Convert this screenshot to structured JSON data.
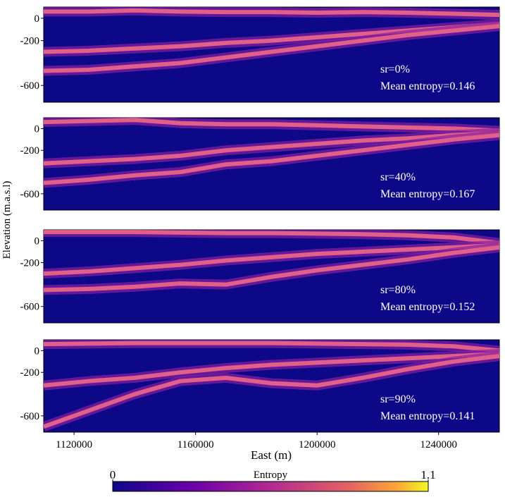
{
  "chart_data": [
    {
      "type": "line",
      "annotations": [
        "sr=0%",
        "Mean entropy=0.146"
      ],
      "x": [
        1110000,
        1125000,
        1140000,
        1155000,
        1170000,
        1185000,
        1200000,
        1215000,
        1230000,
        1245000,
        1260000
      ],
      "xlim": [
        1110000,
        1260000
      ],
      "ylim": [
        -750,
        100
      ],
      "yticks": [
        0,
        -200,
        -600
      ],
      "series": [
        {
          "color": "#e0608a",
          "values": [
            60,
            60,
            70,
            60,
            55,
            55,
            50,
            55,
            50,
            40,
            30
          ]
        },
        {
          "color": "#e0608a",
          "values": [
            -300,
            -290,
            -270,
            -250,
            -220,
            -200,
            -170,
            -140,
            -110,
            -80,
            -50
          ]
        },
        {
          "color": "#e0608a",
          "values": [
            -470,
            -460,
            -430,
            -400,
            -350,
            -300,
            -250,
            -200,
            -150,
            -110,
            -70
          ]
        }
      ]
    },
    {
      "type": "line",
      "annotations": [
        "sr=40%",
        "Mean entropy=0.167"
      ],
      "x": [
        1110000,
        1125000,
        1140000,
        1155000,
        1170000,
        1185000,
        1200000,
        1215000,
        1230000,
        1245000,
        1260000
      ],
      "xlim": [
        1110000,
        1260000
      ],
      "ylim": [
        -750,
        100
      ],
      "yticks": [
        0,
        -200,
        -600
      ],
      "series": [
        {
          "color": "#e0608a",
          "values": [
            60,
            70,
            80,
            50,
            40,
            40,
            30,
            20,
            10,
            0,
            -20
          ]
        },
        {
          "color": "#e0608a",
          "values": [
            -320,
            -300,
            -280,
            -250,
            -200,
            -170,
            -140,
            -110,
            -90,
            -60,
            -40
          ]
        },
        {
          "color": "#e0608a",
          "values": [
            -500,
            -470,
            -430,
            -400,
            -330,
            -300,
            -250,
            -200,
            -150,
            -100,
            -60
          ]
        }
      ]
    },
    {
      "type": "line",
      "annotations": [
        "sr=80%",
        "Mean entropy=0.152"
      ],
      "x": [
        1110000,
        1125000,
        1140000,
        1155000,
        1170000,
        1185000,
        1200000,
        1215000,
        1230000,
        1245000,
        1260000
      ],
      "xlim": [
        1110000,
        1260000
      ],
      "ylim": [
        -750,
        100
      ],
      "yticks": [
        0,
        -200,
        -600
      ],
      "series": [
        {
          "color": "#e0608a",
          "values": [
            80,
            80,
            80,
            75,
            70,
            70,
            65,
            60,
            50,
            30,
            -20
          ]
        },
        {
          "color": "#e0608a",
          "values": [
            -300,
            -280,
            -250,
            -220,
            -180,
            -150,
            -120,
            -100,
            -80,
            -60,
            -40
          ]
        },
        {
          "color": "#e0608a",
          "values": [
            -450,
            -440,
            -420,
            -390,
            -400,
            -330,
            -270,
            -220,
            -170,
            -110,
            -60
          ]
        }
      ]
    },
    {
      "type": "line",
      "annotations": [
        "sr=90%",
        "Mean entropy=0.141"
      ],
      "x": [
        1110000,
        1125000,
        1140000,
        1155000,
        1170000,
        1185000,
        1200000,
        1215000,
        1230000,
        1245000,
        1260000
      ],
      "xlim": [
        1110000,
        1260000
      ],
      "ylim": [
        -750,
        100
      ],
      "yticks": [
        0,
        -200,
        -600
      ],
      "xticks": [
        1120000,
        1160000,
        1200000,
        1240000
      ],
      "xlabel": "East (m)",
      "series": [
        {
          "color": "#e0608a",
          "values": [
            60,
            65,
            70,
            70,
            70,
            70,
            65,
            60,
            55,
            40,
            0
          ]
        },
        {
          "color": "#e0608a",
          "values": [
            -320,
            -280,
            -250,
            -200,
            -160,
            -130,
            -110,
            -90,
            -70,
            -50,
            -30
          ]
        },
        {
          "color": "#e0608a",
          "values": [
            -700,
            -550,
            -400,
            -280,
            -250,
            -300,
            -320,
            -250,
            -170,
            -100,
            -50
          ]
        }
      ]
    }
  ],
  "figure": {
    "ylabel": "Elevation (m.a.s.l)",
    "background": "#0d0887"
  },
  "colorbar": {
    "label": "Entropy",
    "lim": [
      0,
      1.1
    ],
    "ticks": [
      0,
      1.1
    ]
  }
}
